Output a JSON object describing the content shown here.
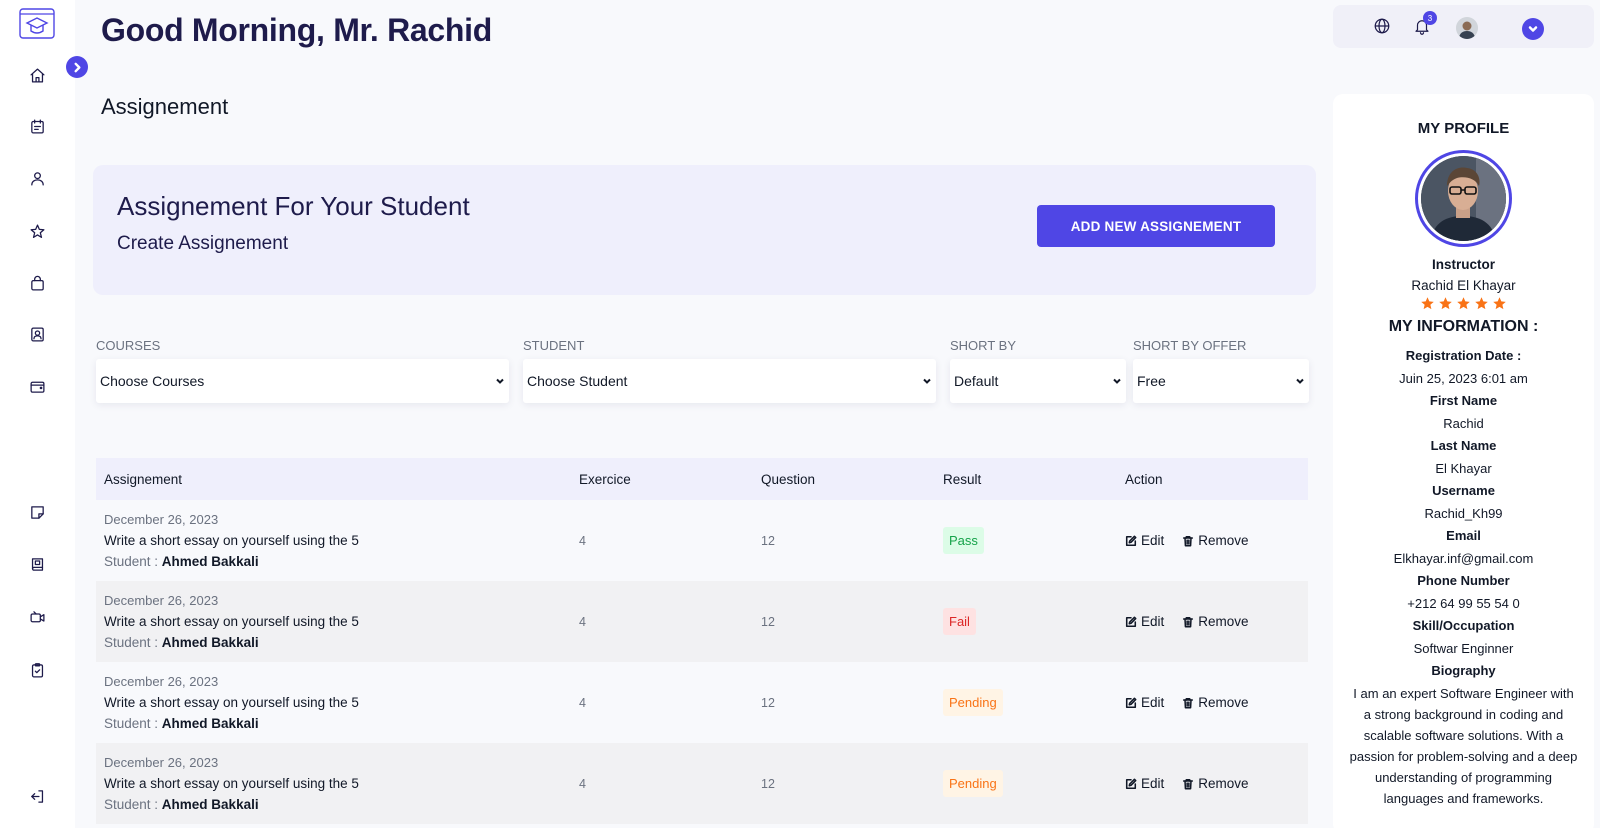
{
  "header": {
    "greeting": "Good Morning, Mr. Rachid",
    "page_title": "Assignement"
  },
  "topbar": {
    "notification_count": "3"
  },
  "banner": {
    "title": "Assignement For Your Student",
    "subtitle": "Create Assignement",
    "add_button": "ADD NEW ASSIGNEMENT"
  },
  "filters": [
    {
      "label": "COURSES",
      "value": "Choose Courses"
    },
    {
      "label": "STUDENT",
      "value": "Choose Student"
    },
    {
      "label": "SHORT BY",
      "value": "Default"
    },
    {
      "label": "SHORT BY OFFER",
      "value": "Free"
    }
  ],
  "table": {
    "headers": [
      "Assignement",
      "Exercice",
      "Question",
      "Result",
      "Action"
    ],
    "student_label": "Student : ",
    "edit_label": "Edit",
    "remove_label": "Remove",
    "rows": [
      {
        "date": "December 26, 2023",
        "title": "Write a short essay on yourself using the 5",
        "student": "Ahmed Bakkali",
        "exercice": "4",
        "question": "12",
        "result": "Pass",
        "status": "pass"
      },
      {
        "date": "December 26, 2023",
        "title": "Write a short essay on yourself using the 5",
        "student": "Ahmed Bakkali",
        "exercice": "4",
        "question": "12",
        "result": "Fail",
        "status": "fail"
      },
      {
        "date": "December 26, 2023",
        "title": "Write a short essay on yourself using the 5",
        "student": "Ahmed Bakkali",
        "exercice": "4",
        "question": "12",
        "result": "Pending",
        "status": "pending"
      },
      {
        "date": "December 26, 2023",
        "title": "Write a short essay on yourself using the 5",
        "student": "Ahmed Bakkali",
        "exercice": "4",
        "question": "12",
        "result": "Pending",
        "status": "pending"
      }
    ]
  },
  "profile": {
    "heading": "MY PROFILE",
    "role": "Instructor",
    "name": "Rachid El Khayar",
    "rating": 5,
    "info_heading": "MY INFORMATION :",
    "fields": [
      {
        "label": "Registration Date :",
        "value": "Juin 25, 2023 6:01 am"
      },
      {
        "label": "First Name",
        "value": "Rachid"
      },
      {
        "label": "Last Name",
        "value": "El Khayar"
      },
      {
        "label": "Username",
        "value": "Rachid_Kh99"
      },
      {
        "label": "Email",
        "value": "Elkhayar.inf@gmail.com"
      },
      {
        "label": "Phone Number",
        "value": "+212 64 99 55 54 0"
      },
      {
        "label": "Skill/Occupation",
        "value": "Softwar Enginner"
      }
    ],
    "biography_label": "Biography",
    "biography": "I am an expert Software Engineer with a strong background in coding and scalable software solutions. With a passion for problem-solving and a deep understanding of programming languages and frameworks."
  },
  "colors": {
    "accent": "#4f46e5",
    "navy": "#1e1b4b",
    "pass": "#16a34a",
    "fail": "#dc2626",
    "pending": "#f97316"
  },
  "icons": {
    "rail": [
      "home-icon",
      "calendar-icon",
      "user-icon",
      "star-icon",
      "shopping-bag-icon",
      "profile-card-icon",
      "wallet-icon",
      "note-icon",
      "book-icon",
      "video-icon",
      "clipboard-check-icon",
      "logout-icon"
    ],
    "topbar": [
      "globe-icon",
      "bell-icon",
      "avatar",
      "chevron-down-icon"
    ]
  }
}
